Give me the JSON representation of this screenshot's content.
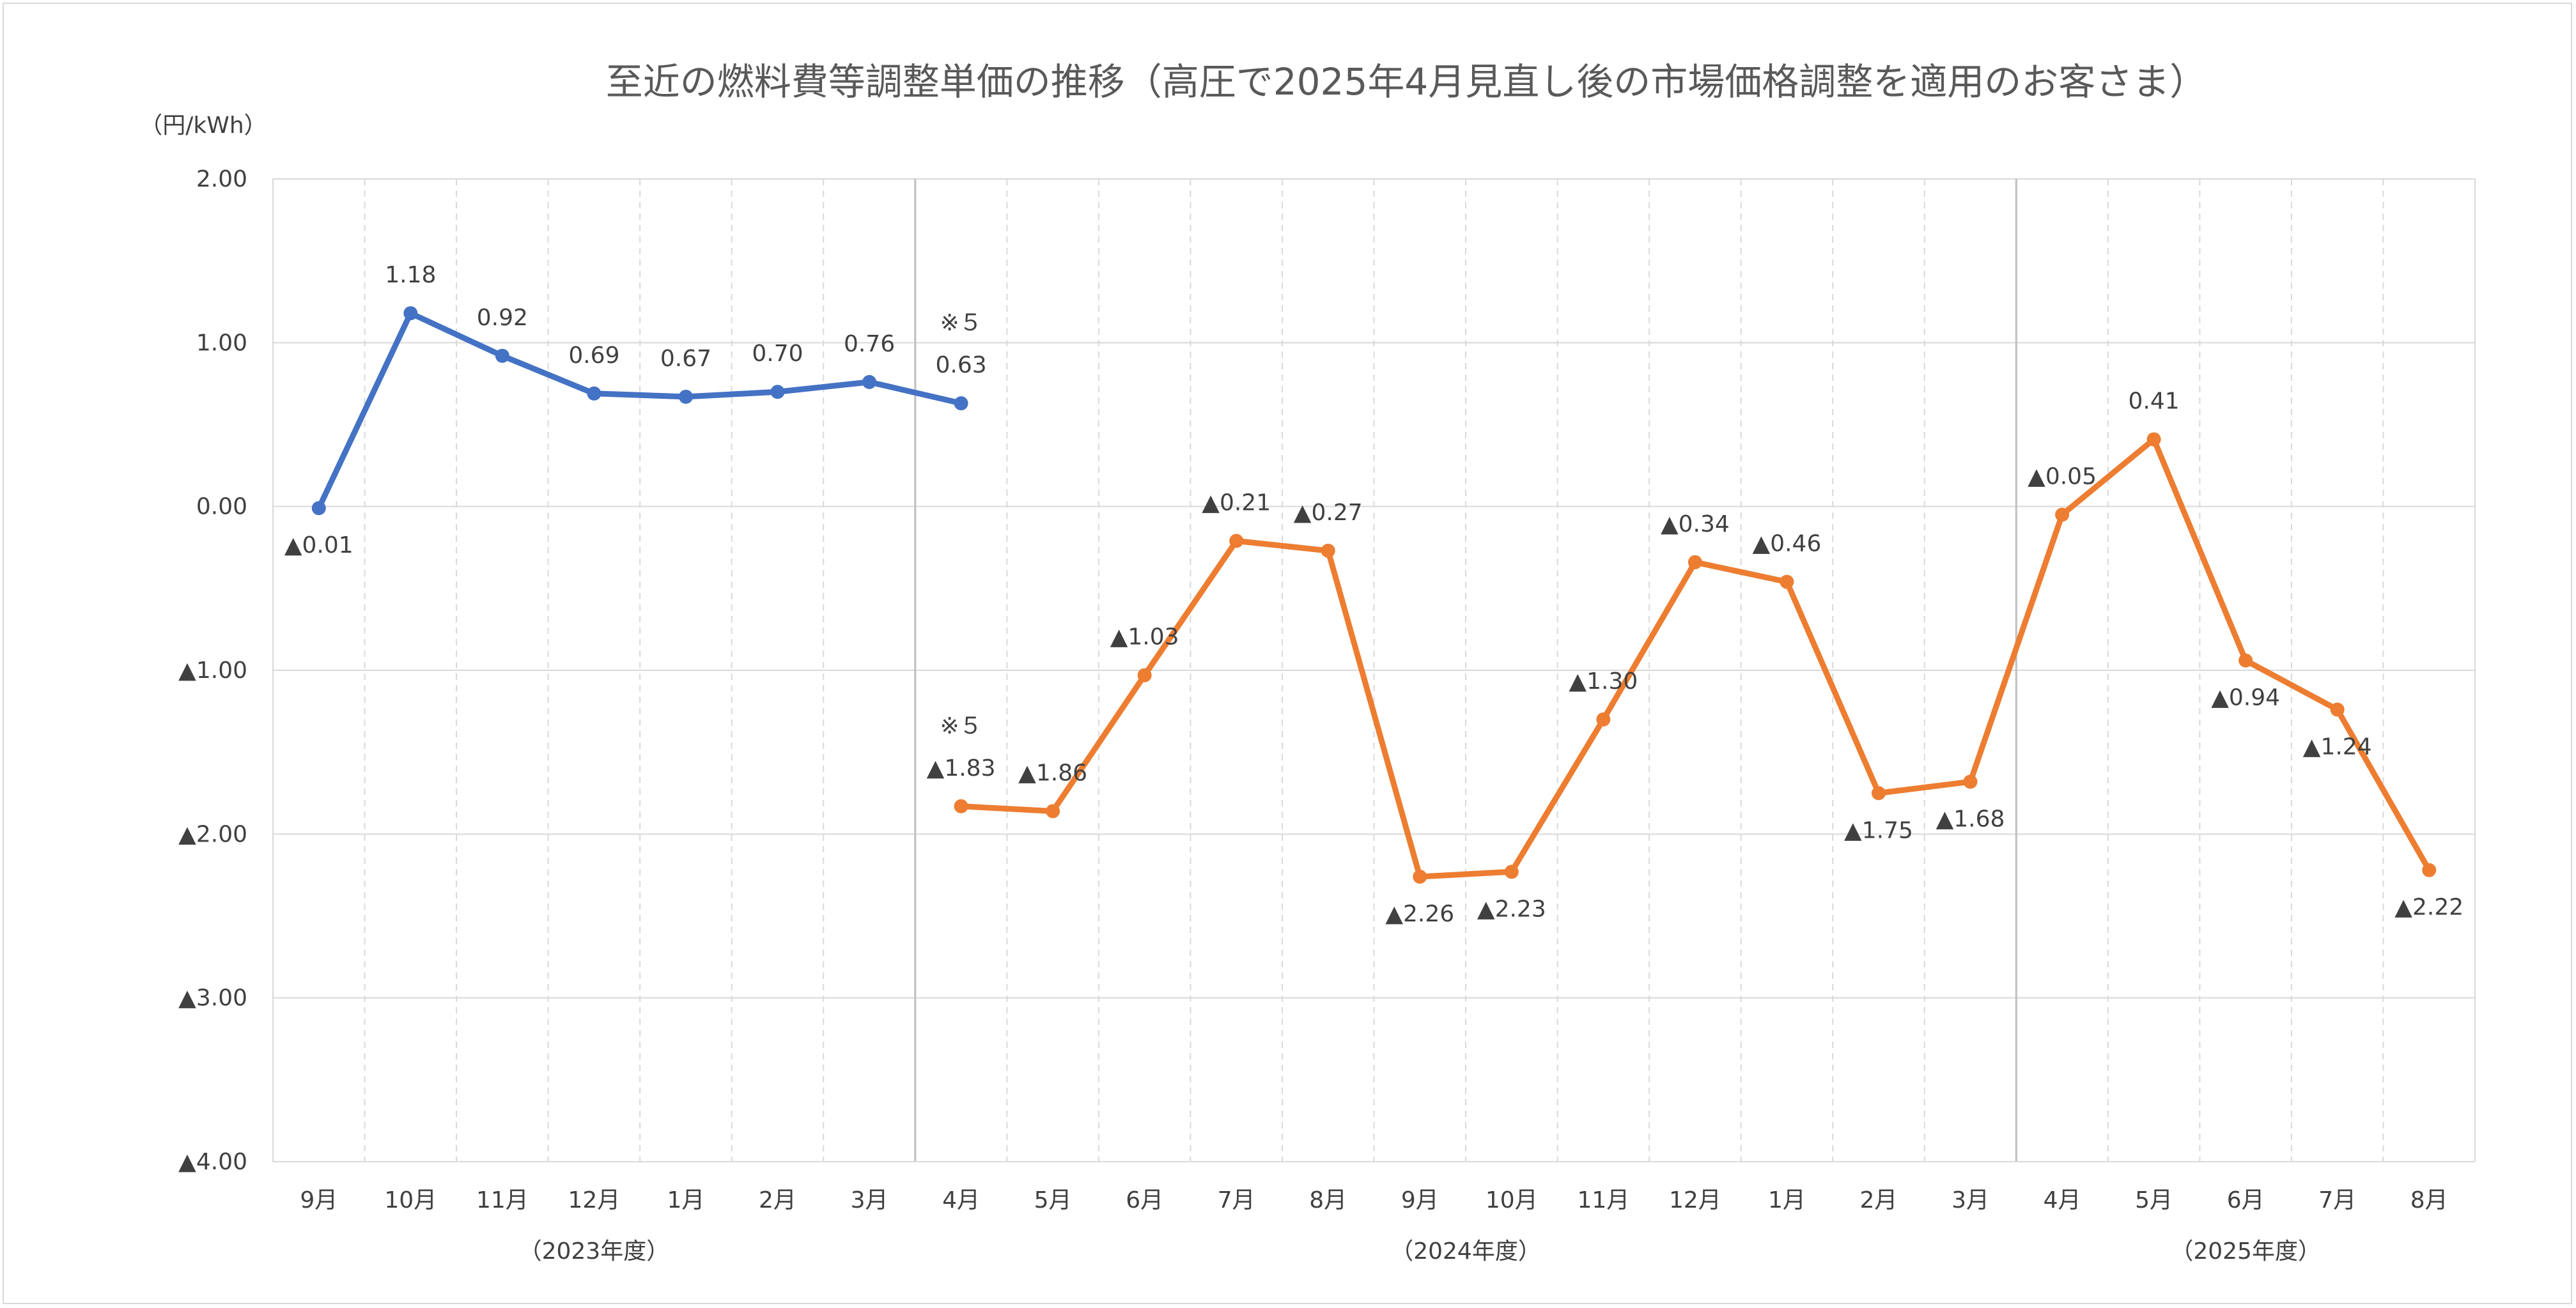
{
  "chart_data": {
    "type": "line",
    "title": "至近の燃料費等調整単価の推移（高圧で2025年4月見直し後の市場価格調整を適用のお客さま）",
    "ylabel": "（円/kWh）",
    "ylim": [
      -4.0,
      2.0
    ],
    "ytick_values": [
      2.0,
      1.0,
      0.0,
      -1.0,
      -2.0,
      -3.0,
      -4.0
    ],
    "ytick_labels": [
      "2.00",
      "1.00",
      "0.00",
      "▲1.00",
      "▲2.00",
      "▲3.00",
      "▲4.00"
    ],
    "categories": [
      "9月",
      "10月",
      "11月",
      "12月",
      "1月",
      "2月",
      "3月",
      "4月",
      "5月",
      "6月",
      "7月",
      "8月",
      "9月",
      "10月",
      "11月",
      "12月",
      "1月",
      "2月",
      "3月",
      "4月",
      "5月",
      "6月",
      "7月",
      "8月"
    ],
    "fiscal_groups": [
      {
        "label": "（2023年度）",
        "start": 0,
        "end": 6
      },
      {
        "label": "（2024年度）",
        "start": 7,
        "end": 18
      },
      {
        "label": "（2025年度）",
        "start": 19,
        "end": 23
      }
    ],
    "series": [
      {
        "color": "#4472c4",
        "points": [
          {
            "x": 0,
            "y": -0.01,
            "label": "▲0.01",
            "pos": "below"
          },
          {
            "x": 1,
            "y": 1.18,
            "label": "1.18",
            "pos": "above"
          },
          {
            "x": 2,
            "y": 0.92,
            "label": "0.92",
            "pos": "above"
          },
          {
            "x": 3,
            "y": 0.69,
            "label": "0.69",
            "pos": "above"
          },
          {
            "x": 4,
            "y": 0.67,
            "label": "0.67",
            "pos": "above"
          },
          {
            "x": 5,
            "y": 0.7,
            "label": "0.70",
            "pos": "above"
          },
          {
            "x": 6,
            "y": 0.76,
            "label": "0.76",
            "pos": "above"
          },
          {
            "x": 7,
            "y": 0.63,
            "label": "0.63",
            "pos": "above",
            "note": "※５"
          }
        ]
      },
      {
        "color": "#ed7d31",
        "points": [
          {
            "x": 7,
            "y": -1.83,
            "label": "▲1.83",
            "pos": "above",
            "note": "※５"
          },
          {
            "x": 8,
            "y": -1.86,
            "label": "▲1.86",
            "pos": "above"
          },
          {
            "x": 9,
            "y": -1.03,
            "label": "▲1.03",
            "pos": "above"
          },
          {
            "x": 10,
            "y": -0.21,
            "label": "▲0.21",
            "pos": "above"
          },
          {
            "x": 11,
            "y": -0.27,
            "label": "▲0.27",
            "pos": "above"
          },
          {
            "x": 12,
            "y": -2.26,
            "label": "▲2.26",
            "pos": "below"
          },
          {
            "x": 13,
            "y": -2.23,
            "label": "▲2.23",
            "pos": "below"
          },
          {
            "x": 14,
            "y": -1.3,
            "label": "▲1.30",
            "pos": "above"
          },
          {
            "x": 15,
            "y": -0.34,
            "label": "▲0.34",
            "pos": "above"
          },
          {
            "x": 16,
            "y": -0.46,
            "label": "▲0.46",
            "pos": "above"
          },
          {
            "x": 17,
            "y": -1.75,
            "label": "▲1.75",
            "pos": "below"
          },
          {
            "x": 18,
            "y": -1.68,
            "label": "▲1.68",
            "pos": "below"
          },
          {
            "x": 19,
            "y": -0.05,
            "label": "▲0.05",
            "pos": "above"
          },
          {
            "x": 20,
            "y": 0.41,
            "label": "0.41",
            "pos": "above"
          },
          {
            "x": 21,
            "y": -0.94,
            "label": "▲0.94",
            "pos": "below"
          },
          {
            "x": 22,
            "y": -1.24,
            "label": "▲1.24",
            "pos": "below"
          },
          {
            "x": 23,
            "y": -2.22,
            "label": "▲2.22",
            "pos": "below"
          }
        ]
      }
    ],
    "grid": true
  }
}
